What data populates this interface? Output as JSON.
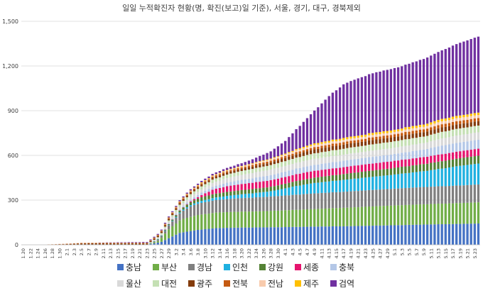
{
  "chart_data": {
    "type": "bar",
    "stacked": true,
    "title": "일일 누적확진자 현황(명, 확진(보고)일 기준), 서울, 경기, 대구, 경북제외",
    "ylim": [
      0,
      1500
    ],
    "yticks": [
      0,
      300,
      600,
      900,
      1200,
      1500
    ],
    "ytick_labels": [
      "0",
      "300",
      "600",
      "900",
      "1,200",
      "1,500"
    ],
    "grid": true,
    "legend_position": "bottom",
    "xtick_labels": [
      "1.20",
      "1.22",
      "1.24",
      "1.26",
      "1.28",
      "1.30",
      "2.1",
      "2.3",
      "2.5",
      "2.7",
      "2.9",
      "2.11",
      "2.13",
      "2.15",
      "2.17",
      "2.19",
      "2.21",
      "2.23",
      "2.25",
      "2.27",
      "2.29",
      "3.2",
      "3.4",
      "3.6",
      "3.8",
      "3.10",
      "3.12",
      "3.14",
      "3.16",
      "3.18",
      "3.20",
      "3.22",
      "3.24",
      "3.26",
      "3.28",
      "3.30",
      "4.1",
      "4.3",
      "4.5",
      "4.7",
      "4.9",
      "4.11",
      "4.13",
      "4.15",
      "4.17",
      "4.19",
      "4.21",
      "4.23",
      "4.25",
      "4.27",
      "4.29",
      "5.1",
      "5.3",
      "5.5",
      "5.7",
      "5.9",
      "5.11",
      "5.13",
      "5.15",
      "5.17",
      "5.19",
      "5.21",
      "5.23"
    ],
    "series": [
      {
        "name": "충남",
        "color": "#4472c4"
      },
      {
        "name": "부산",
        "color": "#70ad47"
      },
      {
        "name": "경남",
        "color": "#7f7f7f"
      },
      {
        "name": "인천",
        "color": "#1fb0e0"
      },
      {
        "name": "강원",
        "color": "#548235"
      },
      {
        "name": "세종",
        "color": "#e6146e"
      },
      {
        "name": "충북",
        "color": "#b4c7e7"
      },
      {
        "name": "울산",
        "color": "#d9d9d9"
      },
      {
        "name": "대전",
        "color": "#c5e0b4"
      },
      {
        "name": "광주",
        "color": "#843c0c"
      },
      {
        "name": "전북",
        "color": "#c55a11"
      },
      {
        "name": "전남",
        "color": "#f8cbad"
      },
      {
        "name": "제주",
        "color": "#ffc000"
      },
      {
        "name": "검역",
        "color": "#7030a0"
      }
    ],
    "region_keypoints": {
      "충남": [
        [
          0,
          0
        ],
        [
          34,
          0
        ],
        [
          38,
          20
        ],
        [
          43,
          80
        ],
        [
          48,
          100
        ],
        [
          53,
          112
        ],
        [
          58,
          115
        ],
        [
          70,
          118
        ],
        [
          80,
          122
        ],
        [
          90,
          125
        ],
        [
          100,
          130
        ],
        [
          110,
          136
        ],
        [
          120,
          140
        ],
        [
          125,
          143
        ]
      ],
      "부산": [
        [
          0,
          0
        ],
        [
          34,
          0
        ],
        [
          37,
          10
        ],
        [
          40,
          60
        ],
        [
          44,
          90
        ],
        [
          48,
          100
        ],
        [
          55,
          105
        ],
        [
          65,
          108
        ],
        [
          80,
          118
        ],
        [
          100,
          132
        ],
        [
          110,
          136
        ],
        [
          120,
          140
        ],
        [
          125,
          142
        ]
      ],
      "경남": [
        [
          0,
          0
        ],
        [
          34,
          0
        ],
        [
          38,
          10
        ],
        [
          42,
          40
        ],
        [
          46,
          70
        ],
        [
          50,
          80
        ],
        [
          58,
          90
        ],
        [
          70,
          98
        ],
        [
          80,
          105
        ],
        [
          100,
          112
        ],
        [
          110,
          116
        ],
        [
          120,
          118
        ],
        [
          125,
          120
        ]
      ],
      "인천": [
        [
          0,
          0
        ],
        [
          30,
          1
        ],
        [
          35,
          1
        ],
        [
          40,
          3
        ],
        [
          45,
          8
        ],
        [
          50,
          15
        ],
        [
          60,
          25
        ],
        [
          68,
          35
        ],
        [
          74,
          55
        ],
        [
          80,
          70
        ],
        [
          90,
          82
        ],
        [
          100,
          92
        ],
        [
          110,
          106
        ],
        [
          115,
          118
        ],
        [
          120,
          132
        ],
        [
          125,
          140
        ]
      ],
      "강원": [
        [
          0,
          0
        ],
        [
          34,
          0
        ],
        [
          40,
          6
        ],
        [
          46,
          20
        ],
        [
          50,
          25
        ],
        [
          60,
          28
        ],
        [
          70,
          30
        ],
        [
          80,
          36
        ],
        [
          90,
          40
        ],
        [
          110,
          48
        ],
        [
          125,
          53
        ]
      ],
      "세종": [
        [
          0,
          0
        ],
        [
          34,
          0
        ],
        [
          44,
          1
        ],
        [
          48,
          10
        ],
        [
          52,
          30
        ],
        [
          56,
          38
        ],
        [
          62,
          42
        ],
        [
          70,
          45
        ],
        [
          80,
          46
        ],
        [
          100,
          47
        ],
        [
          125,
          47
        ]
      ],
      "충북": [
        [
          0,
          0
        ],
        [
          34,
          0
        ],
        [
          40,
          5
        ],
        [
          46,
          11
        ],
        [
          52,
          20
        ],
        [
          60,
          28
        ],
        [
          70,
          35
        ],
        [
          80,
          40
        ],
        [
          90,
          44
        ],
        [
          100,
          45
        ],
        [
          110,
          50
        ],
        [
          115,
          58
        ],
        [
          125,
          60
        ]
      ],
      "울산": [
        [
          0,
          0
        ],
        [
          34,
          0
        ],
        [
          38,
          6
        ],
        [
          44,
          18
        ],
        [
          50,
          22
        ],
        [
          56,
          30
        ],
        [
          62,
          35
        ],
        [
          70,
          38
        ],
        [
          80,
          40
        ],
        [
          110,
          43
        ],
        [
          115,
          48
        ],
        [
          125,
          50
        ]
      ],
      "대전": [
        [
          0,
          0
        ],
        [
          34,
          0
        ],
        [
          42,
          13
        ],
        [
          46,
          18
        ],
        [
          50,
          22
        ],
        [
          56,
          24
        ],
        [
          62,
          27
        ],
        [
          70,
          31
        ],
        [
          80,
          37
        ],
        [
          90,
          40
        ],
        [
          100,
          43
        ],
        [
          110,
          44
        ],
        [
          125,
          45
        ]
      ],
      "광주": [
        [
          0,
          0
        ],
        [
          6,
          0
        ],
        [
          8,
          2
        ],
        [
          16,
          8
        ],
        [
          20,
          9
        ],
        [
          34,
          9
        ],
        [
          40,
          10
        ],
        [
          50,
          12
        ],
        [
          60,
          15
        ],
        [
          70,
          19
        ],
        [
          80,
          27
        ],
        [
          90,
          28
        ],
        [
          100,
          29
        ],
        [
          110,
          30
        ],
        [
          125,
          30
        ]
      ],
      "전북": [
        [
          0,
          0
        ],
        [
          6,
          0
        ],
        [
          8,
          1
        ],
        [
          14,
          2
        ],
        [
          16,
          3
        ],
        [
          34,
          3
        ],
        [
          40,
          5
        ],
        [
          46,
          7
        ],
        [
          52,
          8
        ],
        [
          60,
          10
        ],
        [
          70,
          12
        ],
        [
          80,
          15
        ],
        [
          90,
          17
        ],
        [
          100,
          18
        ],
        [
          110,
          19
        ],
        [
          115,
          21
        ],
        [
          125,
          21
        ]
      ],
      "전남": [
        [
          0,
          0
        ],
        [
          6,
          0
        ],
        [
          8,
          1
        ],
        [
          34,
          1
        ],
        [
          50,
          3
        ],
        [
          58,
          4
        ],
        [
          70,
          10
        ],
        [
          80,
          14
        ],
        [
          90,
          15
        ],
        [
          100,
          16
        ],
        [
          110,
          17
        ],
        [
          115,
          20
        ],
        [
          125,
          20
        ]
      ],
      "제주": [
        [
          0,
          0
        ],
        [
          34,
          0
        ],
        [
          40,
          2
        ],
        [
          50,
          4
        ],
        [
          60,
          4
        ],
        [
          70,
          5
        ],
        [
          80,
          11
        ],
        [
          90,
          13
        ],
        [
          100,
          14
        ],
        [
          110,
          15
        ],
        [
          115,
          16
        ],
        [
          125,
          16
        ]
      ],
      "검역": [
        [
          0,
          0
        ],
        [
          20,
          0
        ],
        [
          24,
          2
        ],
        [
          34,
          5
        ],
        [
          44,
          8
        ],
        [
          50,
          10
        ],
        [
          54,
          12
        ],
        [
          60,
          18
        ],
        [
          64,
          30
        ],
        [
          68,
          48
        ],
        [
          72,
          85
        ],
        [
          76,
          150
        ],
        [
          80,
          220
        ],
        [
          84,
          300
        ],
        [
          88,
          360
        ],
        [
          92,
          385
        ],
        [
          96,
          400
        ],
        [
          100,
          410
        ],
        [
          105,
          420
        ],
        [
          110,
          440
        ],
        [
          115,
          460
        ],
        [
          120,
          488
        ],
        [
          125,
          510
        ]
      ]
    },
    "total_days": 125,
    "approximate_final_total": 1403
  }
}
